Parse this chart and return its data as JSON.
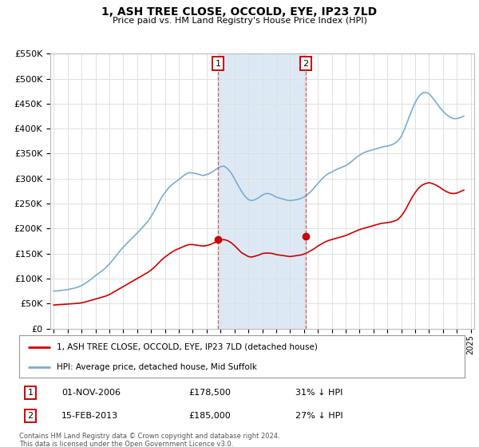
{
  "title": "1, ASH TREE CLOSE, OCCOLD, EYE, IP23 7LD",
  "subtitle": "Price paid vs. HM Land Registry's House Price Index (HPI)",
  "ylim": [
    0,
    550000
  ],
  "yticks": [
    0,
    50000,
    100000,
    150000,
    200000,
    250000,
    300000,
    350000,
    400000,
    450000,
    500000,
    550000
  ],
  "ytick_labels": [
    "£0",
    "£50K",
    "£100K",
    "£150K",
    "£200K",
    "£250K",
    "£300K",
    "£350K",
    "£400K",
    "£450K",
    "£500K",
    "£550K"
  ],
  "background_color": "#ffffff",
  "grid_color": "#e0e0e0",
  "highlight_color": "#dce9f5",
  "marker1_x": 2006.83,
  "marker2_x": 2013.12,
  "marker1_price": 178500,
  "marker2_price": 185000,
  "marker1_date": "01-NOV-2006",
  "marker2_date": "15-FEB-2013",
  "marker1_hpi": "31% ↓ HPI",
  "marker2_hpi": "27% ↓ HPI",
  "legend_label_red": "1, ASH TREE CLOSE, OCCOLD, EYE, IP23 7LD (detached house)",
  "legend_label_blue": "HPI: Average price, detached house, Mid Suffolk",
  "footer": "Contains HM Land Registry data © Crown copyright and database right 2024.\nThis data is licensed under the Open Government Licence v3.0.",
  "red_line_color": "#cc0000",
  "blue_line_color": "#7aadcf",
  "hpi_years": [
    1995.0,
    1995.25,
    1995.5,
    1995.75,
    1996.0,
    1996.25,
    1996.5,
    1996.75,
    1997.0,
    1997.25,
    1997.5,
    1997.75,
    1998.0,
    1998.25,
    1998.5,
    1998.75,
    1999.0,
    1999.25,
    1999.5,
    1999.75,
    2000.0,
    2000.25,
    2000.5,
    2000.75,
    2001.0,
    2001.25,
    2001.5,
    2001.75,
    2002.0,
    2002.25,
    2002.5,
    2002.75,
    2003.0,
    2003.25,
    2003.5,
    2003.75,
    2004.0,
    2004.25,
    2004.5,
    2004.75,
    2005.0,
    2005.25,
    2005.5,
    2005.75,
    2006.0,
    2006.25,
    2006.5,
    2006.75,
    2007.0,
    2007.25,
    2007.5,
    2007.75,
    2008.0,
    2008.25,
    2008.5,
    2008.75,
    2009.0,
    2009.25,
    2009.5,
    2009.75,
    2010.0,
    2010.25,
    2010.5,
    2010.75,
    2011.0,
    2011.25,
    2011.5,
    2011.75,
    2012.0,
    2012.25,
    2012.5,
    2012.75,
    2013.0,
    2013.25,
    2013.5,
    2013.75,
    2014.0,
    2014.25,
    2014.5,
    2014.75,
    2015.0,
    2015.25,
    2015.5,
    2015.75,
    2016.0,
    2016.25,
    2016.5,
    2016.75,
    2017.0,
    2017.25,
    2017.5,
    2017.75,
    2018.0,
    2018.25,
    2018.5,
    2018.75,
    2019.0,
    2019.25,
    2019.5,
    2019.75,
    2020.0,
    2020.25,
    2020.5,
    2020.75,
    2021.0,
    2021.25,
    2021.5,
    2021.75,
    2022.0,
    2022.25,
    2022.5,
    2022.75,
    2023.0,
    2023.25,
    2023.5,
    2023.75,
    2024.0,
    2024.25,
    2024.5
  ],
  "hpi_values": [
    75000,
    75500,
    76000,
    77000,
    78000,
    79500,
    81000,
    83000,
    86000,
    90000,
    95000,
    100000,
    106000,
    111000,
    116000,
    122000,
    129000,
    137000,
    146000,
    155000,
    163000,
    170000,
    177000,
    184000,
    191000,
    198000,
    206000,
    214000,
    224000,
    236000,
    249000,
    262000,
    272000,
    281000,
    288000,
    293000,
    298000,
    304000,
    309000,
    312000,
    311000,
    310000,
    308000,
    306000,
    308000,
    311000,
    315000,
    320000,
    324000,
    325000,
    320000,
    312000,
    300000,
    287000,
    275000,
    265000,
    258000,
    256000,
    258000,
    262000,
    267000,
    270000,
    270000,
    267000,
    263000,
    261000,
    259000,
    257000,
    256000,
    257000,
    258000,
    260000,
    263000,
    268000,
    274000,
    282000,
    290000,
    298000,
    305000,
    310000,
    313000,
    317000,
    320000,
    323000,
    326000,
    330000,
    336000,
    342000,
    347000,
    351000,
    354000,
    356000,
    358000,
    360000,
    362000,
    364000,
    365000,
    367000,
    370000,
    375000,
    384000,
    400000,
    418000,
    436000,
    452000,
    464000,
    471000,
    473000,
    470000,
    462000,
    453000,
    443000,
    435000,
    428000,
    423000,
    420000,
    420000,
    422000,
    425000
  ],
  "red_years": [
    1995.0,
    1995.25,
    1995.5,
    1995.75,
    1996.0,
    1996.25,
    1996.5,
    1996.75,
    1997.0,
    1997.25,
    1997.5,
    1997.75,
    1998.0,
    1998.25,
    1998.5,
    1998.75,
    1999.0,
    1999.25,
    1999.5,
    1999.75,
    2000.0,
    2000.25,
    2000.5,
    2000.75,
    2001.0,
    2001.25,
    2001.5,
    2001.75,
    2002.0,
    2002.25,
    2002.5,
    2002.75,
    2003.0,
    2003.25,
    2003.5,
    2003.75,
    2004.0,
    2004.25,
    2004.5,
    2004.75,
    2005.0,
    2005.25,
    2005.5,
    2005.75,
    2006.0,
    2006.25,
    2006.5,
    2006.75,
    2007.0,
    2007.25,
    2007.5,
    2007.75,
    2008.0,
    2008.25,
    2008.5,
    2008.75,
    2009.0,
    2009.25,
    2009.5,
    2009.75,
    2010.0,
    2010.25,
    2010.5,
    2010.75,
    2011.0,
    2011.25,
    2011.5,
    2011.75,
    2012.0,
    2012.25,
    2012.5,
    2012.75,
    2013.0,
    2013.25,
    2013.5,
    2013.75,
    2014.0,
    2014.25,
    2014.5,
    2014.75,
    2015.0,
    2015.25,
    2015.5,
    2015.75,
    2016.0,
    2016.25,
    2016.5,
    2016.75,
    2017.0,
    2017.25,
    2017.5,
    2017.75,
    2018.0,
    2018.25,
    2018.5,
    2018.75,
    2019.0,
    2019.25,
    2019.5,
    2019.75,
    2020.0,
    2020.25,
    2020.5,
    2020.75,
    2021.0,
    2021.25,
    2021.5,
    2021.75,
    2022.0,
    2022.25,
    2022.5,
    2022.75,
    2023.0,
    2023.25,
    2023.5,
    2023.75,
    2024.0,
    2024.25,
    2024.5
  ],
  "red_values": [
    47000,
    47500,
    48000,
    48500,
    49000,
    49500,
    50000,
    50500,
    51500,
    53000,
    55000,
    57000,
    59000,
    61000,
    63000,
    65000,
    68000,
    72000,
    76000,
    80000,
    84000,
    88000,
    92000,
    96000,
    100000,
    104000,
    108000,
    112000,
    117000,
    123000,
    130000,
    137000,
    143000,
    148000,
    153000,
    157000,
    160000,
    163000,
    166000,
    168000,
    168000,
    167000,
    166000,
    165000,
    166000,
    168000,
    171000,
    174000,
    177000,
    178000,
    176000,
    172000,
    166000,
    159000,
    152000,
    148000,
    144000,
    143000,
    145000,
    147000,
    150000,
    151000,
    151000,
    150000,
    148000,
    147000,
    146000,
    145000,
    144000,
    145000,
    146000,
    147000,
    149000,
    152000,
    156000,
    160000,
    165000,
    169000,
    173000,
    176000,
    178000,
    180000,
    182000,
    184000,
    186000,
    189000,
    192000,
    195000,
    198000,
    200000,
    202000,
    204000,
    206000,
    208000,
    210000,
    211000,
    212000,
    213000,
    215000,
    218000,
    225000,
    235000,
    248000,
    261000,
    272000,
    281000,
    287000,
    290000,
    292000,
    290000,
    287000,
    283000,
    278000,
    274000,
    271000,
    270000,
    271000,
    274000,
    277000
  ]
}
